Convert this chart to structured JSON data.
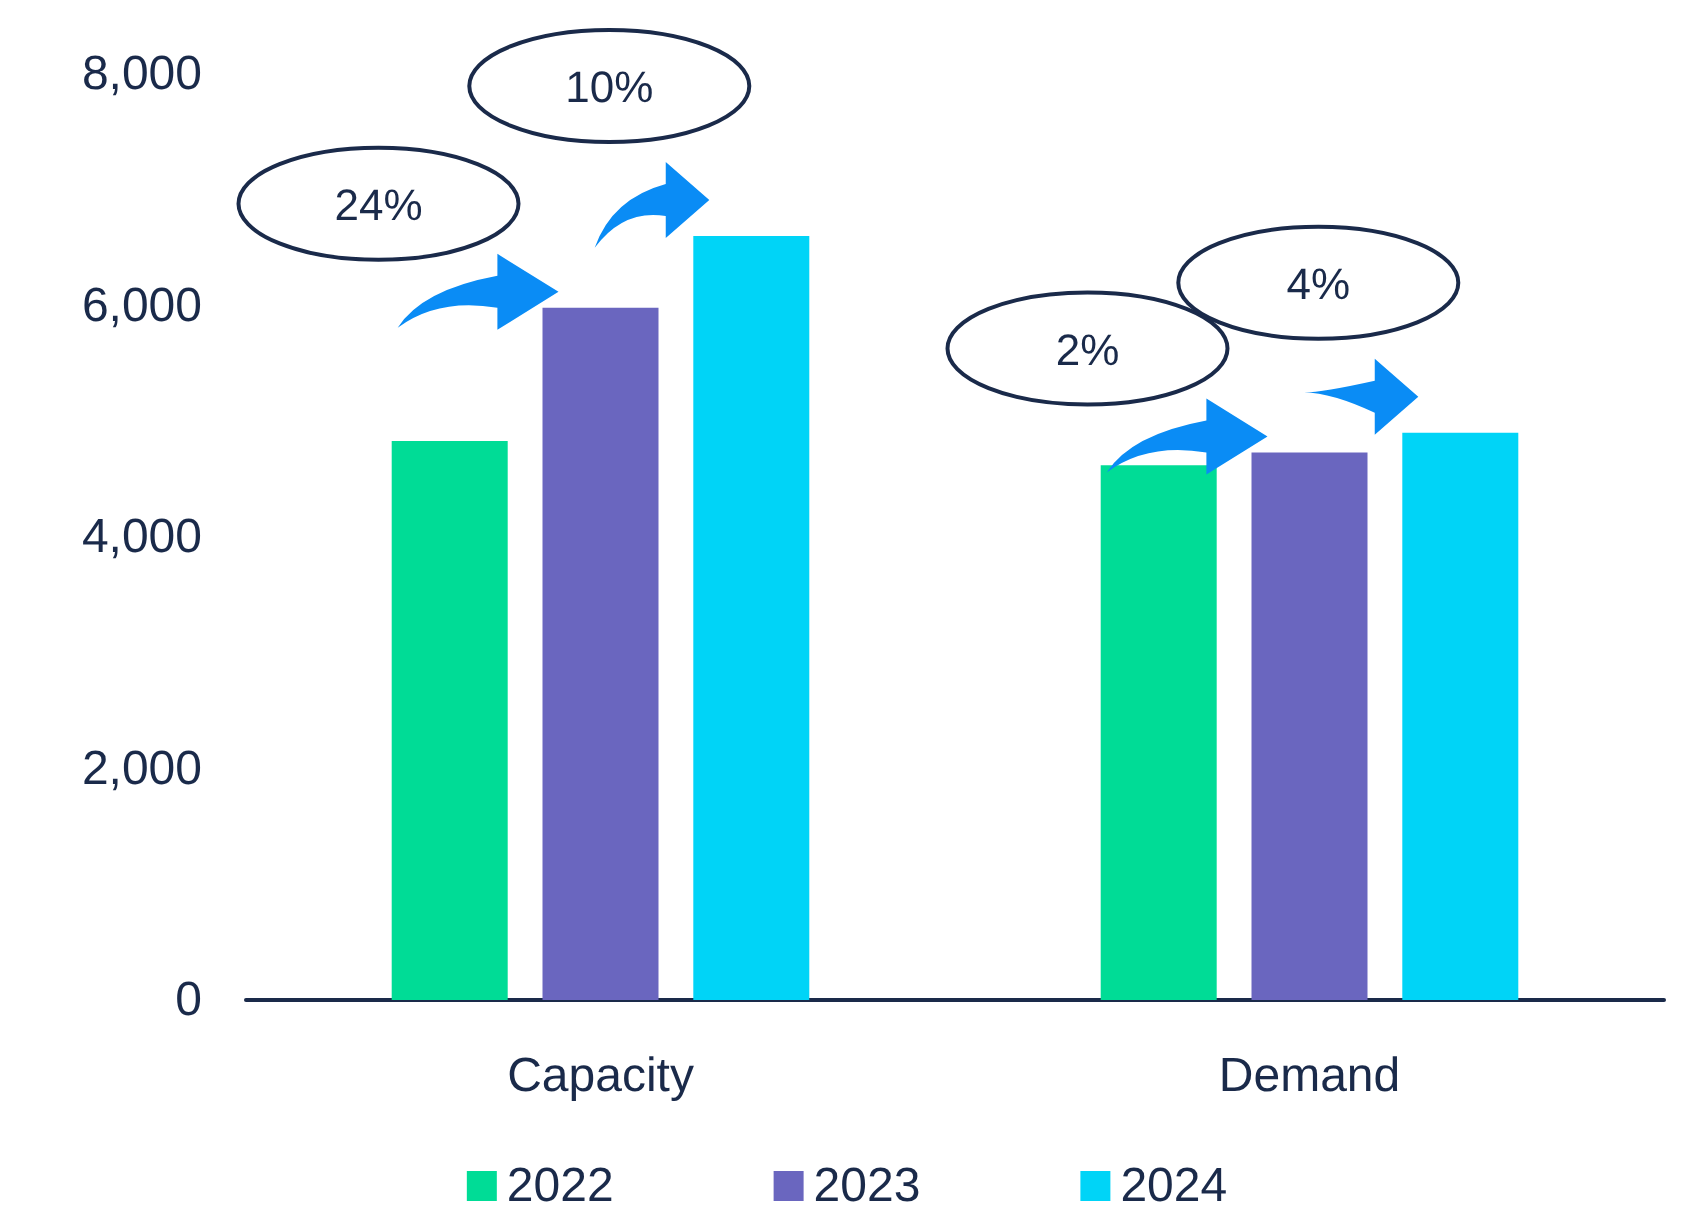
{
  "chart_data": {
    "type": "bar",
    "categories": [
      "Capacity",
      "Demand"
    ],
    "series": [
      {
        "name": "2022",
        "color": "#00dc96",
        "values": [
          4830,
          4620
        ]
      },
      {
        "name": "2023",
        "color": "#6a66bf",
        "values": [
          5980,
          4730
        ]
      },
      {
        "name": "2024",
        "color": "#00d4f7",
        "values": [
          6600,
          4900
        ]
      }
    ],
    "ylim": [
      0,
      8000
    ],
    "yticks": [
      0,
      {
        "value": 2000,
        "label": "2,000"
      },
      {
        "value": 4000,
        "label": "4,000"
      },
      {
        "value": 6000,
        "label": "6,000"
      },
      {
        "value": 8000,
        "label": "8,000"
      }
    ],
    "grid": false,
    "legend": "bottom",
    "annotations": [
      "24%",
      "10%",
      "2%",
      "4%"
    ]
  }
}
